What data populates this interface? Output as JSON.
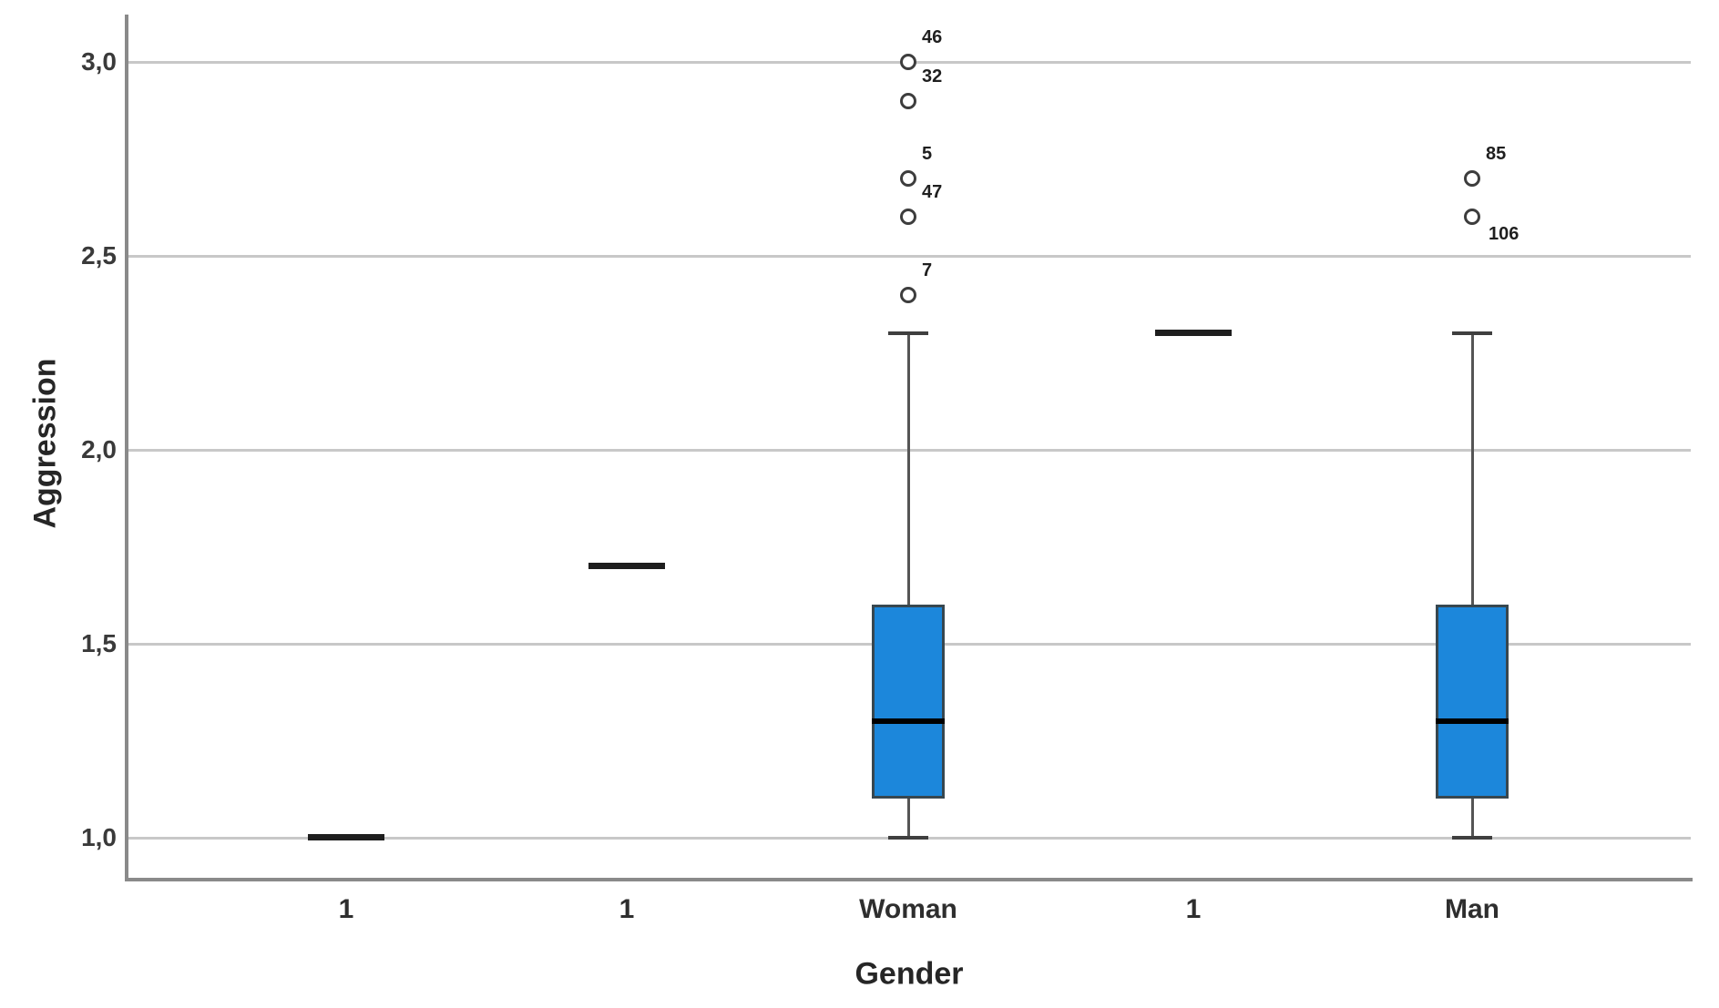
{
  "figure": {
    "background": "#ffffff"
  },
  "chart_data": {
    "type": "boxplot",
    "title": "",
    "xlabel": "Gender",
    "ylabel": "Aggression",
    "ylim": [
      0.89,
      3.12
    ],
    "grid": "horizontal",
    "legend": "none",
    "yticks": [
      {
        "value": 3.0,
        "label": "3,0"
      },
      {
        "value": 2.5,
        "label": "2,5"
      },
      {
        "value": 2.0,
        "label": "2,0"
      },
      {
        "value": 1.5,
        "label": "1,5"
      },
      {
        "value": 1.0,
        "label": "1,0"
      }
    ],
    "categories": [
      "1",
      "1",
      "Woman",
      "1",
      "Man"
    ],
    "groups": [
      {
        "category": "1",
        "type": "line",
        "value": 1.0
      },
      {
        "category": "1",
        "type": "line",
        "value": 1.7
      },
      {
        "category": "Woman",
        "type": "box",
        "whisker_low": 1.0,
        "q1": 1.1,
        "median": 1.3,
        "q3": 1.6,
        "whisker_high": 2.3,
        "outliers": [
          {
            "value": 2.4,
            "label": "7",
            "label_side": "above-right"
          },
          {
            "value": 2.6,
            "label": "47",
            "label_side": "above-right"
          },
          {
            "value": 2.7,
            "label": "5",
            "label_side": "above-right"
          },
          {
            "value": 2.9,
            "label": "32",
            "label_side": "above-right"
          },
          {
            "value": 3.0,
            "label": "46",
            "label_side": "above-right"
          }
        ]
      },
      {
        "category": "1",
        "type": "line",
        "value": 2.3
      },
      {
        "category": "Man",
        "type": "box",
        "whisker_low": 1.0,
        "q1": 1.1,
        "median": 1.3,
        "q3": 1.6,
        "whisker_high": 2.3,
        "outliers": [
          {
            "value": 2.6,
            "label": "106",
            "label_side": "below-right"
          },
          {
            "value": 2.7,
            "label": "85",
            "label_side": "above-right"
          }
        ]
      }
    ],
    "colors": {
      "box_fill": "#1c87db",
      "box_border": "#37474f",
      "median": "#000000",
      "whisker": "#555555",
      "whisker_cap": "#3f3f3f",
      "flat_line": "#1e1e1e",
      "gridline": "#c8c8c8",
      "axis_line": "#8a8a8a",
      "text": "#262626",
      "outlier_stroke": "#3d3d3d",
      "outlier_fill": "#ffffff"
    }
  }
}
